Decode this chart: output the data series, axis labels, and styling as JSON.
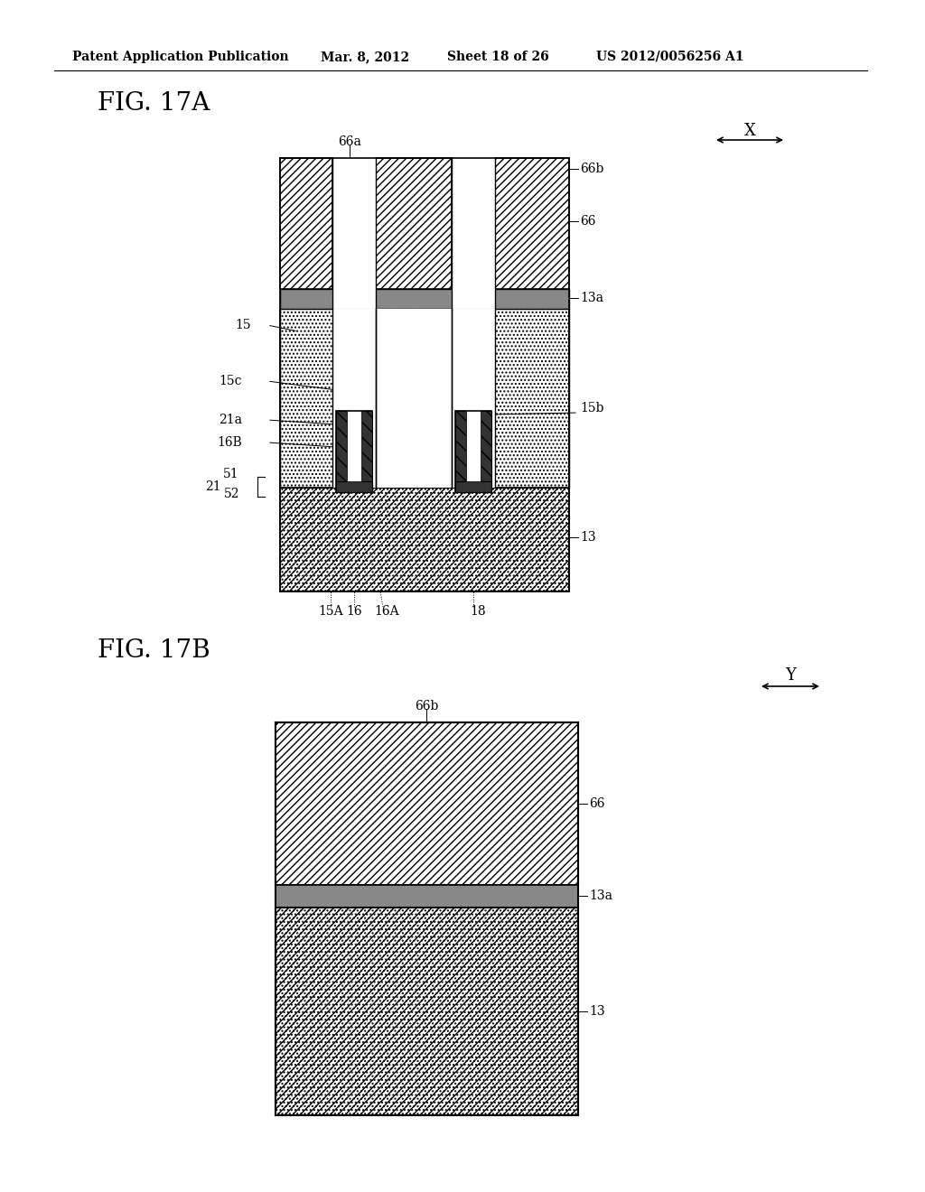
{
  "bg_color": "#ffffff",
  "header_text": "Patent Application Publication",
  "header_date": "Mar. 8, 2012",
  "header_sheet": "Sheet 18 of 26",
  "header_patent": "US 2012/0056256 A1",
  "fig17a_label": "FIG. 17A",
  "fig17b_label": "FIG. 17B",
  "label_x": "X",
  "label_y": "Y"
}
